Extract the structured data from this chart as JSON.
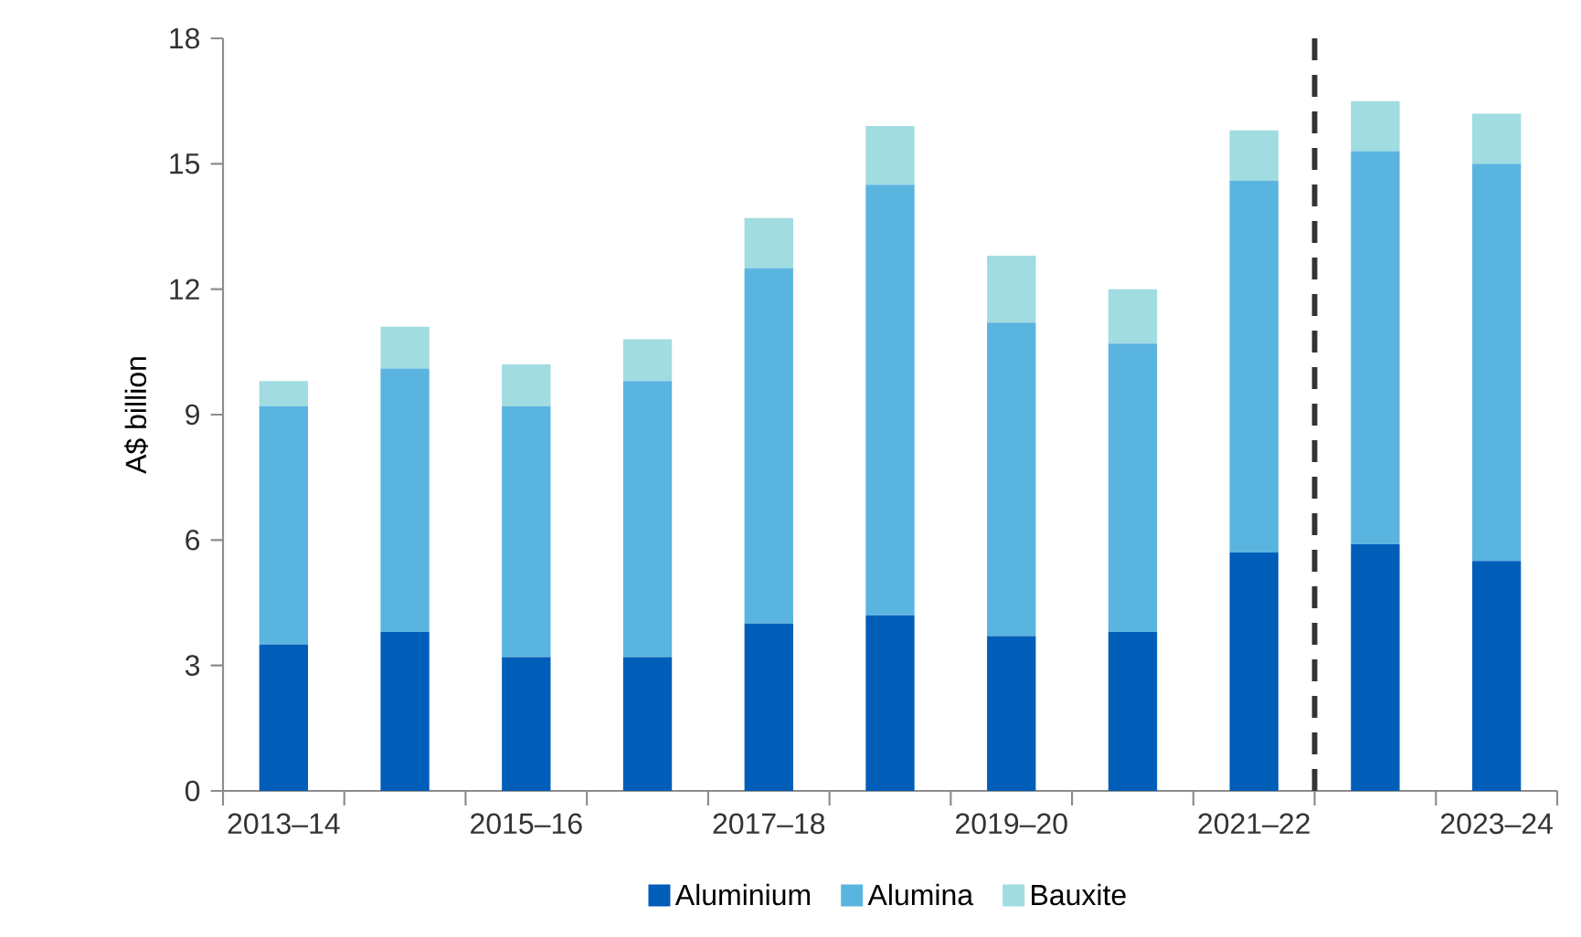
{
  "chart_data": {
    "type": "bar",
    "stacked": true,
    "ylabel": "A$ billion",
    "categories": [
      "2013–14",
      null,
      "2015–16",
      null,
      "2017–18",
      null,
      "2019–20",
      null,
      "2021–22",
      null,
      "2023–24"
    ],
    "series": [
      {
        "name": "Aluminium",
        "color": "#005eb8",
        "values": [
          3.5,
          3.8,
          3.2,
          3.2,
          4.0,
          4.2,
          3.7,
          3.8,
          5.7,
          5.9,
          5.5
        ]
      },
      {
        "name": "Alumina",
        "color": "#5ab4e0",
        "values": [
          5.7,
          6.3,
          6.0,
          6.6,
          8.5,
          10.3,
          7.5,
          6.9,
          8.9,
          9.4,
          9.5
        ]
      },
      {
        "name": "Bauxite",
        "color": "#a0dce0",
        "values": [
          0.6,
          1.0,
          1.0,
          1.0,
          1.2,
          1.4,
          1.6,
          1.3,
          1.2,
          1.2,
          1.2
        ]
      }
    ],
    "ylim": [
      0,
      18
    ],
    "yticks": [
      0,
      3,
      6,
      9,
      12,
      15,
      18
    ],
    "legend": "bottom"
  }
}
